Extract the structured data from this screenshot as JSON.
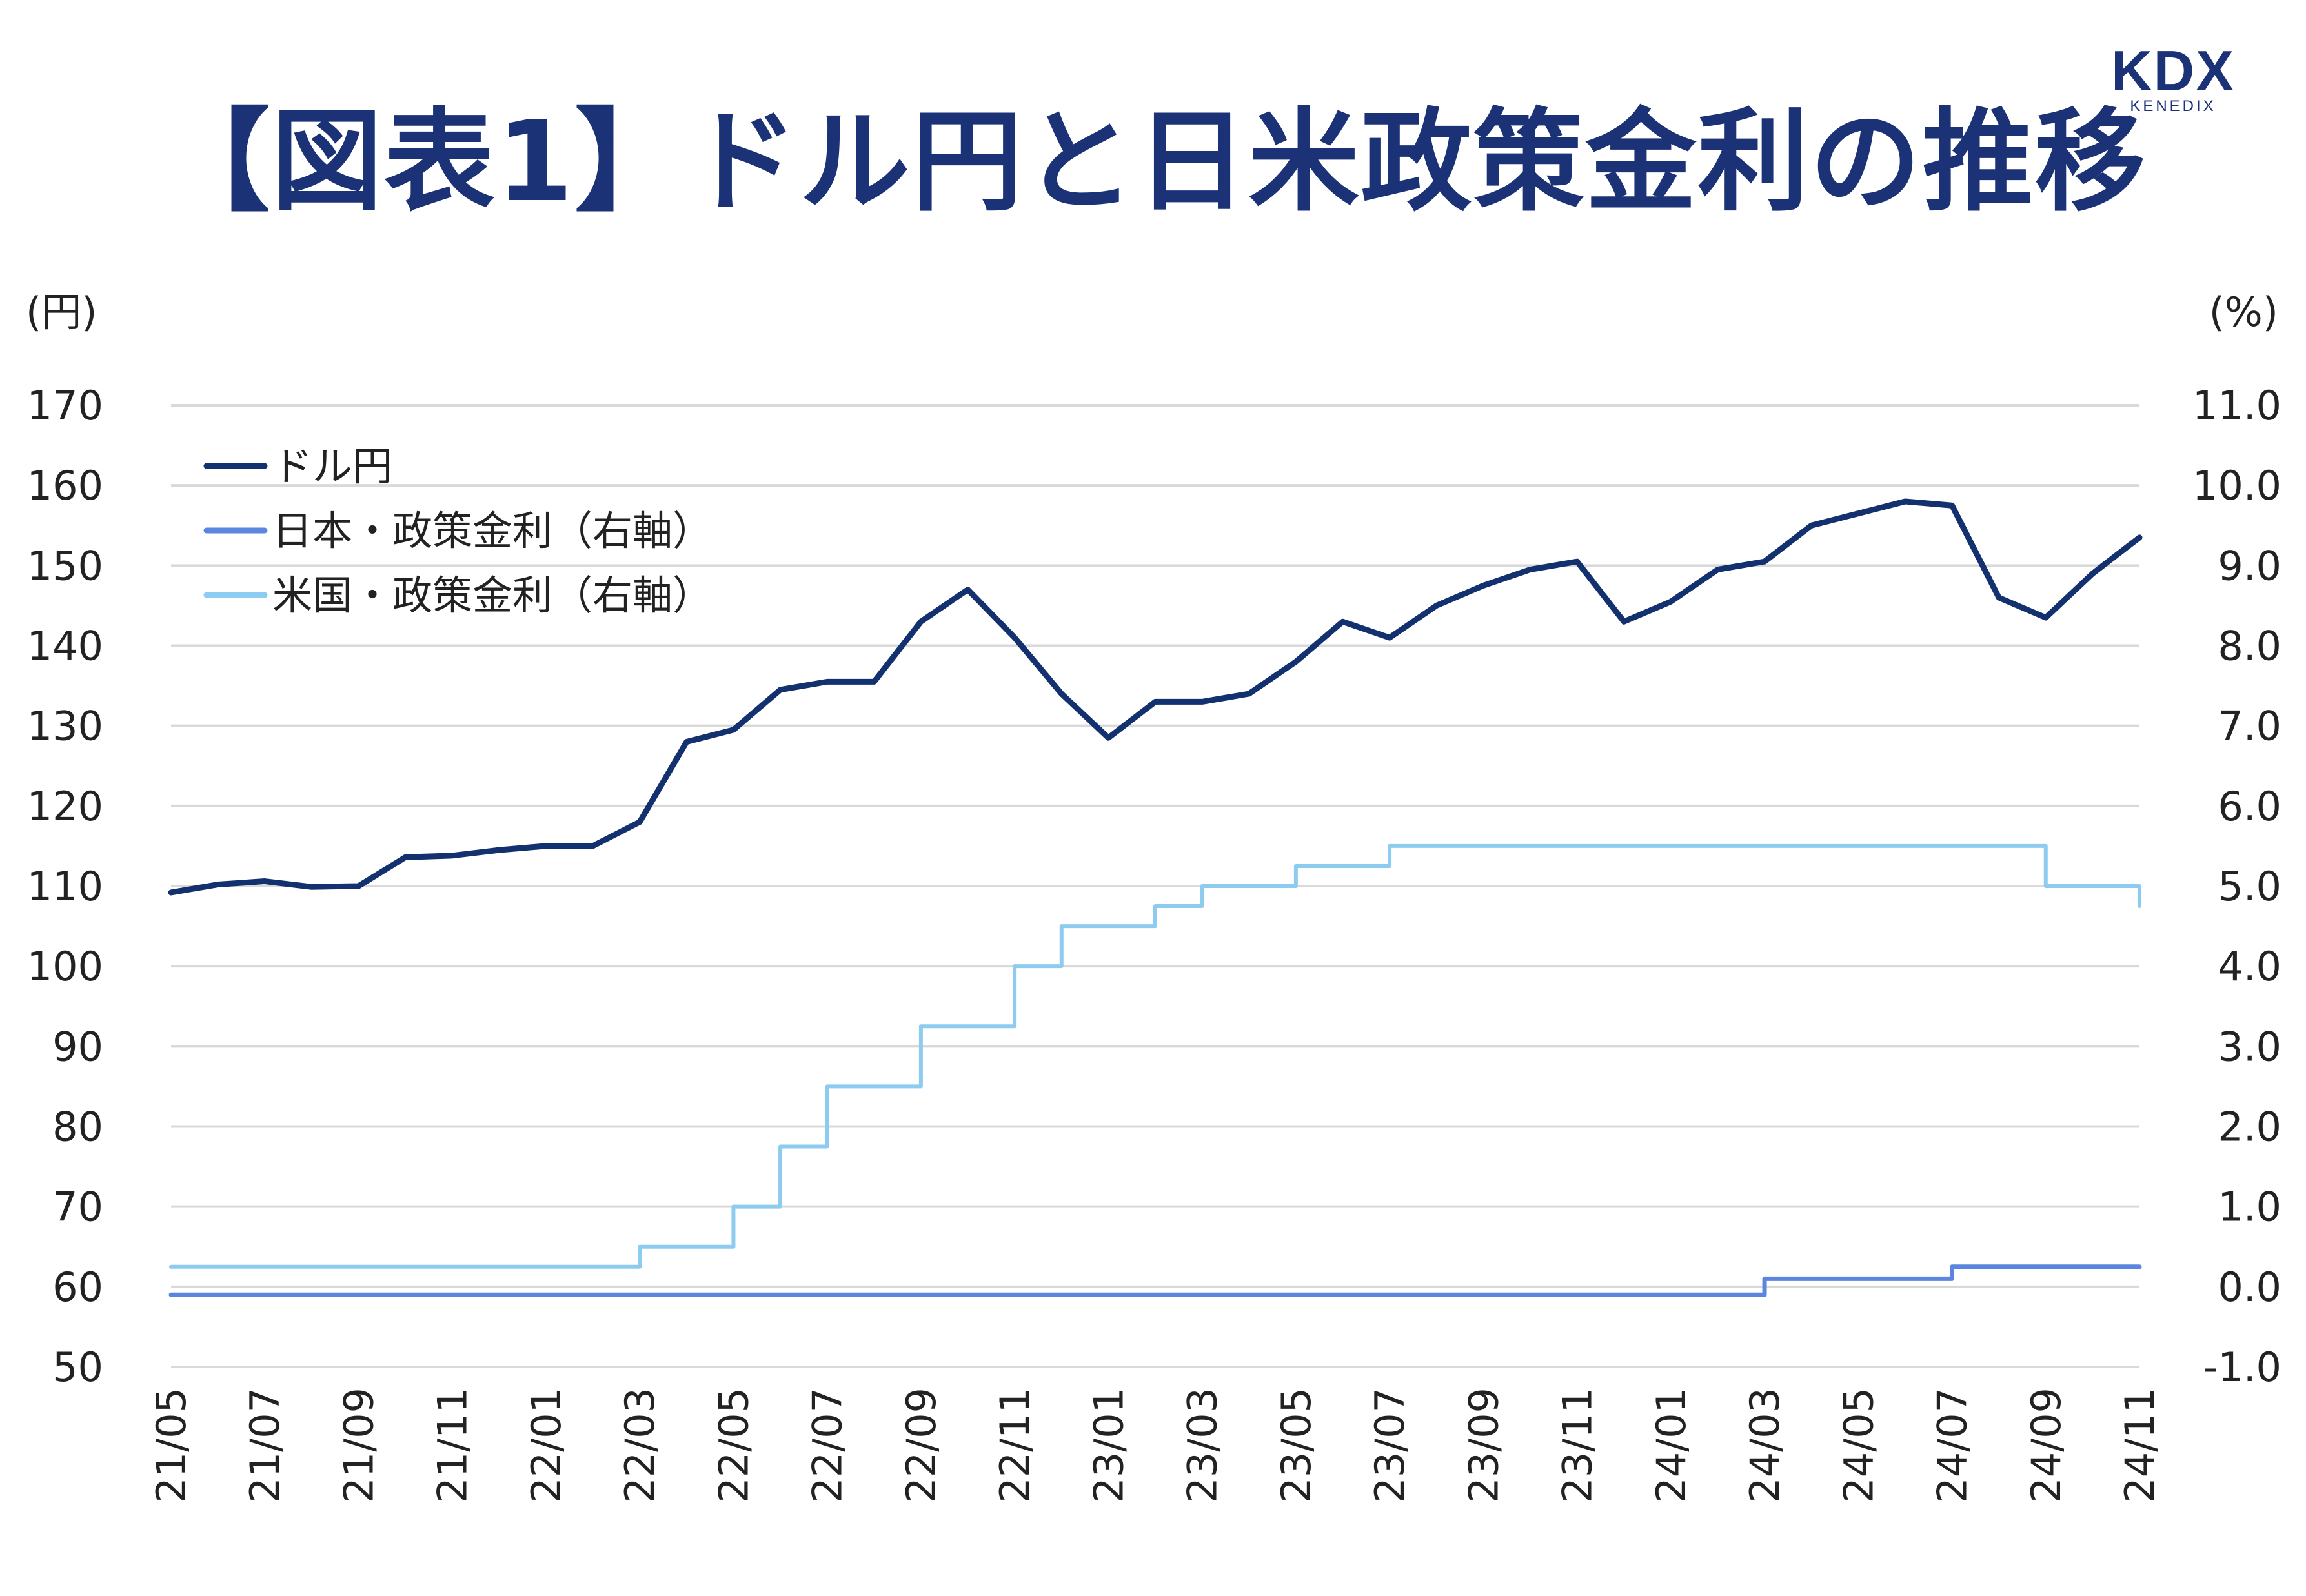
{
  "title": "【図表1】ドル円と日米政策金利の推移",
  "logo": {
    "text": "KDX",
    "subtext": "KENEDIX"
  },
  "colors": {
    "title": "#1b3277",
    "usdjpy": "#13306f",
    "jp_rate": "#5b86e0",
    "us_rate": "#8ecbf1",
    "grid": "#d9d9d9",
    "text": "#222222"
  },
  "chart_data": {
    "type": "line",
    "y_left": {
      "unit_label": "(円)",
      "range": [
        50,
        170
      ],
      "ticks": [
        "50",
        "60",
        "70",
        "80",
        "90",
        "100",
        "110",
        "120",
        "130",
        "140",
        "150",
        "160",
        "170"
      ]
    },
    "y_right": {
      "unit_label": "(%)",
      "range": [
        -1.0,
        11.0
      ],
      "ticks": [
        "-1.0",
        "0.0",
        "1.0",
        "2.0",
        "3.0",
        "4.0",
        "5.0",
        "6.0",
        "7.0",
        "8.0",
        "9.0",
        "10.0",
        "11.0"
      ]
    },
    "x_ticks": [
      "21/05",
      "21/07",
      "21/09",
      "21/11",
      "22/01",
      "22/03",
      "22/05",
      "22/07",
      "22/09",
      "22/11",
      "23/01",
      "23/03",
      "23/05",
      "23/07",
      "23/09",
      "23/11",
      "24/01",
      "24/03",
      "24/05",
      "24/07",
      "24/09",
      "24/11"
    ],
    "grid": true,
    "legend_position": "top-left",
    "series": [
      {
        "name": "ドル円",
        "axis": "left",
        "x": [
          "21/05",
          "21/06",
          "21/07",
          "21/08",
          "21/09",
          "21/10",
          "21/11",
          "21/12",
          "22/01",
          "22/02",
          "22/03",
          "22/04",
          "22/05",
          "22/06",
          "22/07",
          "22/08",
          "22/09",
          "22/10",
          "22/11",
          "22/12",
          "23/01",
          "23/02",
          "23/03",
          "23/04",
          "23/05",
          "23/06",
          "23/07",
          "23/08",
          "23/09",
          "23/10",
          "23/11",
          "23/12",
          "24/01",
          "24/02",
          "24/03",
          "24/04",
          "24/05",
          "24/06",
          "24/07",
          "24/08",
          "24/09",
          "24/10",
          "24/11"
        ],
        "values": [
          109.2,
          110.2,
          110.6,
          109.9,
          110.0,
          113.6,
          113.8,
          114.5,
          115.0,
          115.0,
          118.0,
          128.0,
          129.5,
          134.5,
          135.5,
          135.5,
          143.0,
          147.0,
          141.0,
          134.0,
          128.5,
          133.0,
          133.0,
          134.0,
          138.0,
          143.0,
          141.0,
          145.0,
          147.5,
          149.5,
          150.5,
          143.0,
          145.5,
          149.5,
          150.5,
          155.0,
          156.5,
          158.0,
          157.5,
          146.0,
          143.5,
          149.0,
          153.5
        ]
      },
      {
        "name": "日本・政策金利（右軸）",
        "axis": "right",
        "step": true,
        "x": [
          "21/05",
          "24/03",
          "24/07",
          "24/11"
        ],
        "values": [
          -0.1,
          0.1,
          0.25,
          0.25
        ]
      },
      {
        "name": "米国・政策金利（右軸）",
        "axis": "right",
        "step": true,
        "x": [
          "21/05",
          "22/03",
          "22/05",
          "22/06",
          "22/07",
          "22/09",
          "22/11",
          "22/12",
          "23/02",
          "23/03",
          "23/05",
          "23/07",
          "24/09",
          "24/11"
        ],
        "values": [
          0.25,
          0.5,
          1.0,
          1.75,
          2.5,
          3.25,
          4.0,
          4.5,
          4.75,
          5.0,
          5.25,
          5.5,
          5.0,
          4.75
        ]
      }
    ]
  }
}
